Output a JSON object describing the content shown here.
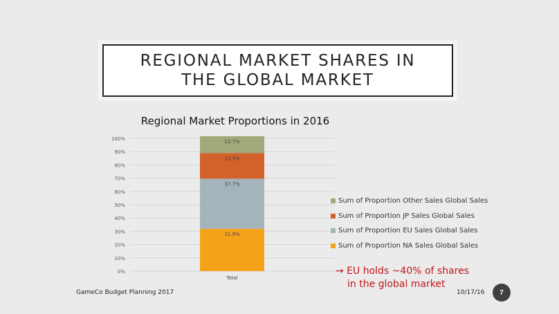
{
  "slide": {
    "title": "REGIONAL MARKET SHARES IN THE GLOBAL MARKET",
    "annotation_line1": "→ EU holds ~40% of shares",
    "annotation_line2": "in the global market",
    "footer_left": "GameCo Budget Planning 2017",
    "footer_date": "10/17/16",
    "page_number": "7"
  },
  "colors": {
    "background": "#ebebeb",
    "annotation": "#c0151b"
  },
  "chart_data": {
    "type": "bar",
    "stacked": true,
    "title": "Regional Market Proportions in 2016",
    "categories": [
      "Total"
    ],
    "xlabel": "",
    "ylabel": "",
    "ylim": [
      0,
      100
    ],
    "y_ticks": [
      "0%",
      "10%",
      "20%",
      "30%",
      "40%",
      "50%",
      "60%",
      "70%",
      "80%",
      "90%",
      "100%"
    ],
    "legend_position": "right",
    "grid": true,
    "series": [
      {
        "name": "Sum of Proportion NA Sales Global Sales",
        "values": [
          31.9
        ],
        "label": "31.9%",
        "color": "#f5a21b"
      },
      {
        "name": "Sum of Proportion EU Sales Global Sales",
        "values": [
          37.7
        ],
        "label": "37.7%",
        "color": "#a4b4bb"
      },
      {
        "name": "Sum of Proportion JP Sales Global Sales",
        "values": [
          19.3
        ],
        "label": "19.3%",
        "color": "#d2622a"
      },
      {
        "name": "Sum of Proportion Other Sales Global Sales",
        "values": [
          12.7
        ],
        "label": "12.7%",
        "color": "#a2a87a"
      }
    ]
  }
}
